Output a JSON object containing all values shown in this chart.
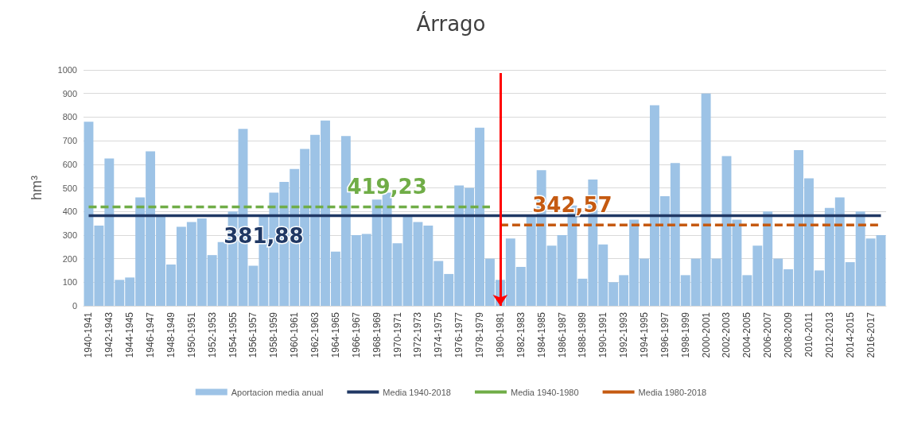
{
  "chart_data": {
    "type": "bar",
    "title": "Árrago",
    "ylabel": "hm³",
    "categories": [
      "1940-1941",
      null,
      "1942-1943",
      null,
      "1944-1945",
      null,
      "1946-1947",
      null,
      "1948-1949",
      null,
      "1950-1951",
      null,
      "1952-1953",
      null,
      "1954-1955",
      null,
      "1956-1957",
      null,
      "1958-1959",
      null,
      "1960-1961",
      null,
      "1962-1963",
      null,
      "1964-1965",
      null,
      "1966-1967",
      null,
      "1968-1969",
      null,
      "1970-1971",
      null,
      "1972-1973",
      null,
      "1974-1975",
      null,
      "1976-1977",
      null,
      "1978-1979",
      null,
      "1980-1981",
      null,
      "1982-1983",
      null,
      "1984-1985",
      null,
      "1986-1987",
      null,
      "1988-1989",
      null,
      "1990-1991",
      null,
      "1992-1993",
      null,
      "1994-1995",
      null,
      "1996-1997",
      null,
      "1998-1999",
      null,
      "2000-2001",
      null,
      "2002-2003",
      null,
      "2004-2005",
      null,
      "2006-2007",
      null,
      "2008-2009",
      null,
      "2010-2011",
      null,
      "2012-2013",
      null,
      "2014-2015",
      null,
      "2016-2017",
      null
    ],
    "series": [
      {
        "name": "Aportacion media anual",
        "color": "#9dc3e6",
        "values": [
          780,
          340,
          625,
          110,
          120,
          460,
          655,
          380,
          175,
          335,
          355,
          370,
          215,
          270,
          400,
          750,
          170,
          380,
          480,
          525,
          580,
          665,
          725,
          785,
          230,
          720,
          300,
          305,
          450,
          480,
          265,
          380,
          355,
          340,
          190,
          135,
          510,
          500,
          755,
          200,
          110,
          285,
          165,
          380,
          575,
          255,
          300,
          425,
          115,
          535,
          260,
          100,
          130,
          365,
          200,
          850,
          465,
          605,
          130,
          200,
          900,
          200,
          635,
          365,
          130,
          255,
          400,
          200,
          155,
          660,
          540,
          150,
          415,
          460,
          185,
          400,
          285,
          300
        ]
      },
      {
        "name": "Media 1940-2018",
        "type": "line",
        "color": "#203864",
        "line_style": "solid",
        "values": [
          381.88,
          381.88,
          381.88,
          381.88,
          381.88,
          381.88,
          381.88,
          381.88,
          381.88,
          381.88,
          381.88,
          381.88,
          381.88,
          381.88,
          381.88,
          381.88,
          381.88,
          381.88,
          381.88,
          381.88,
          381.88,
          381.88,
          381.88,
          381.88,
          381.88,
          381.88,
          381.88,
          381.88,
          381.88,
          381.88,
          381.88,
          381.88,
          381.88,
          381.88,
          381.88,
          381.88,
          381.88,
          381.88,
          381.88,
          381.88,
          381.88,
          381.88,
          381.88,
          381.88,
          381.88,
          381.88,
          381.88,
          381.88,
          381.88,
          381.88,
          381.88,
          381.88,
          381.88,
          381.88,
          381.88,
          381.88,
          381.88,
          381.88,
          381.88,
          381.88,
          381.88,
          381.88,
          381.88,
          381.88,
          381.88,
          381.88,
          381.88,
          381.88,
          381.88,
          381.88,
          381.88,
          381.88,
          381.88,
          381.88,
          381.88,
          381.88,
          381.88,
          381.88
        ],
        "value_labels": [
          null,
          null,
          null,
          null,
          null,
          null,
          null,
          null,
          null,
          null,
          null,
          null,
          null,
          null,
          null,
          null,
          null,
          "381,88",
          null,
          null,
          null,
          null,
          null,
          null,
          null,
          null,
          null,
          null,
          null,
          null,
          null,
          null,
          null,
          null,
          null,
          null,
          null,
          null,
          null,
          null,
          null,
          null,
          null,
          null,
          null,
          null,
          null,
          null,
          null,
          null,
          null,
          null,
          null,
          null,
          null,
          null,
          null,
          null,
          null,
          null,
          null,
          null,
          null,
          null,
          null,
          null,
          null,
          null,
          null,
          null,
          null,
          null,
          null,
          null,
          null,
          null,
          null,
          null
        ]
      },
      {
        "name": "Media 1940-1980",
        "type": "line",
        "color": "#70ad47",
        "line_style": "dashed",
        "values": [
          419.23,
          419.23,
          419.23,
          419.23,
          419.23,
          419.23,
          419.23,
          419.23,
          419.23,
          419.23,
          419.23,
          419.23,
          419.23,
          419.23,
          419.23,
          419.23,
          419.23,
          419.23,
          419.23,
          419.23,
          419.23,
          419.23,
          419.23,
          419.23,
          419.23,
          419.23,
          419.23,
          419.23,
          419.23,
          419.23,
          419.23,
          419.23,
          419.23,
          419.23,
          419.23,
          419.23,
          419.23,
          419.23,
          419.23,
          419.23,
          null,
          null,
          null,
          null,
          null,
          null,
          null,
          null,
          null,
          null,
          null,
          null,
          null,
          null,
          null,
          null,
          null,
          null,
          null,
          null,
          null,
          null,
          null,
          null,
          null,
          null,
          null,
          null,
          null,
          null,
          null,
          null,
          null,
          null,
          null,
          null,
          null,
          null
        ],
        "value_labels": [
          null,
          null,
          null,
          null,
          null,
          null,
          null,
          null,
          null,
          null,
          null,
          null,
          null,
          null,
          null,
          null,
          null,
          null,
          null,
          null,
          null,
          null,
          null,
          null,
          null,
          null,
          null,
          null,
          null,
          "419,23",
          null,
          null,
          null,
          null,
          null,
          null,
          null,
          null,
          null,
          null,
          null,
          null,
          null,
          null,
          null,
          null,
          null,
          null,
          null,
          null,
          null,
          null,
          null,
          null,
          null,
          null,
          null,
          null,
          null,
          null,
          null,
          null,
          null,
          null,
          null,
          null,
          null,
          null,
          null,
          null,
          null,
          null,
          null,
          null,
          null,
          null,
          null,
          null
        ]
      },
      {
        "name": "Media 1980-2018",
        "type": "line",
        "color": "#c55a11",
        "line_style": "dashed",
        "values": [
          null,
          null,
          null,
          null,
          null,
          null,
          null,
          null,
          null,
          null,
          null,
          null,
          null,
          null,
          null,
          null,
          null,
          null,
          null,
          null,
          null,
          null,
          null,
          null,
          null,
          null,
          null,
          null,
          null,
          null,
          null,
          null,
          null,
          null,
          null,
          null,
          null,
          null,
          null,
          null,
          342.57,
          342.57,
          342.57,
          342.57,
          342.57,
          342.57,
          342.57,
          342.57,
          342.57,
          342.57,
          342.57,
          342.57,
          342.57,
          342.57,
          342.57,
          342.57,
          342.57,
          342.57,
          342.57,
          342.57,
          342.57,
          342.57,
          342.57,
          342.57,
          342.57,
          342.57,
          342.57,
          342.57,
          342.57,
          342.57,
          342.57,
          342.57,
          342.57,
          342.57,
          342.57,
          342.57,
          342.57,
          342.57
        ],
        "value_labels": [
          null,
          null,
          null,
          null,
          null,
          null,
          null,
          null,
          null,
          null,
          null,
          null,
          null,
          null,
          null,
          null,
          null,
          null,
          null,
          null,
          null,
          null,
          null,
          null,
          null,
          null,
          null,
          null,
          null,
          null,
          null,
          null,
          null,
          null,
          null,
          null,
          null,
          null,
          null,
          null,
          null,
          null,
          null,
          null,
          null,
          null,
          null,
          "342,57",
          null,
          null,
          null,
          null,
          null,
          null,
          null,
          null,
          null,
          null,
          null,
          null,
          null,
          null,
          null,
          null,
          null,
          null,
          null,
          null,
          null,
          null,
          null,
          null,
          null,
          null,
          null,
          null,
          null,
          null
        ]
      }
    ],
    "ref_lines": [
      {
        "axis": "x",
        "value": "1980-1981",
        "color": "#ff0000"
      }
    ],
    "ylim": [
      0,
      1000
    ],
    "yticks": [
      0,
      100,
      200,
      300,
      400,
      500,
      600,
      700,
      800,
      900,
      1000
    ],
    "grid": "y",
    "legend": "bottom",
    "marker": "none"
  }
}
